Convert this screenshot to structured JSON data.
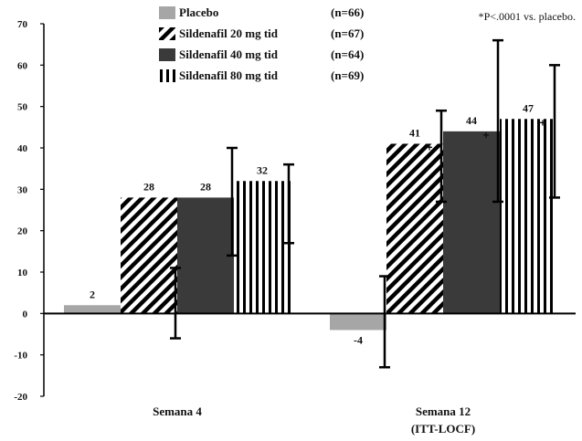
{
  "chart_data": {
    "type": "bar",
    "categories": [
      {
        "line1": "Semana 4",
        "line2": ""
      },
      {
        "line1": "Semana 12",
        "line2": "(ITT-LOCF)"
      }
    ],
    "series": [
      {
        "name": "Placebo",
        "n_label": "(n=66)",
        "pattern": "solid-gray",
        "color": "#a6a6a6",
        "values": [
          2,
          -4
        ],
        "data_labels": [
          "2",
          "-4"
        ],
        "err_low": [
          null,
          -13
        ],
        "err_high": [
          null,
          9
        ],
        "marked": [
          false,
          false
        ]
      },
      {
        "name": "Sildenafil 20 mg tid",
        "n_label": "(n=67)",
        "pattern": "diagonal",
        "color": "#000000",
        "values": [
          28,
          41
        ],
        "data_labels": [
          "28",
          "41"
        ],
        "err_low": [
          -6,
          27
        ],
        "err_high": [
          11,
          49
        ],
        "marked": [
          false,
          true
        ]
      },
      {
        "name": "Sildenafil 40 mg tid",
        "n_label": "(n=64)",
        "pattern": "solid-dark",
        "color": "#3a3a3a",
        "values": [
          28,
          44
        ],
        "data_labels": [
          "28",
          "44"
        ],
        "err_low": [
          14,
          27
        ],
        "err_high": [
          40,
          66
        ],
        "marked": [
          false,
          true
        ]
      },
      {
        "name": "Sildenafil 80 mg tid",
        "n_label": "(n=69)",
        "pattern": "vertical",
        "color": "#000000",
        "values": [
          32,
          47
        ],
        "data_labels": [
          "32",
          "47"
        ],
        "err_low": [
          17,
          28
        ],
        "err_high": [
          36,
          60
        ],
        "marked": [
          false,
          true
        ]
      }
    ],
    "ylim": [
      -20,
      70
    ],
    "yticks": [
      -20,
      -10,
      0,
      10,
      20,
      30,
      40,
      50,
      60,
      70
    ],
    "ytick_labels": [
      "-20",
      "-10",
      "0",
      "10",
      "20",
      "30",
      "40",
      "50",
      "60",
      "70"
    ],
    "marker_symbol": "+",
    "annotation": "*P<.0001 vs. placebo.",
    "legend_position": "top-left",
    "grid": false
  }
}
